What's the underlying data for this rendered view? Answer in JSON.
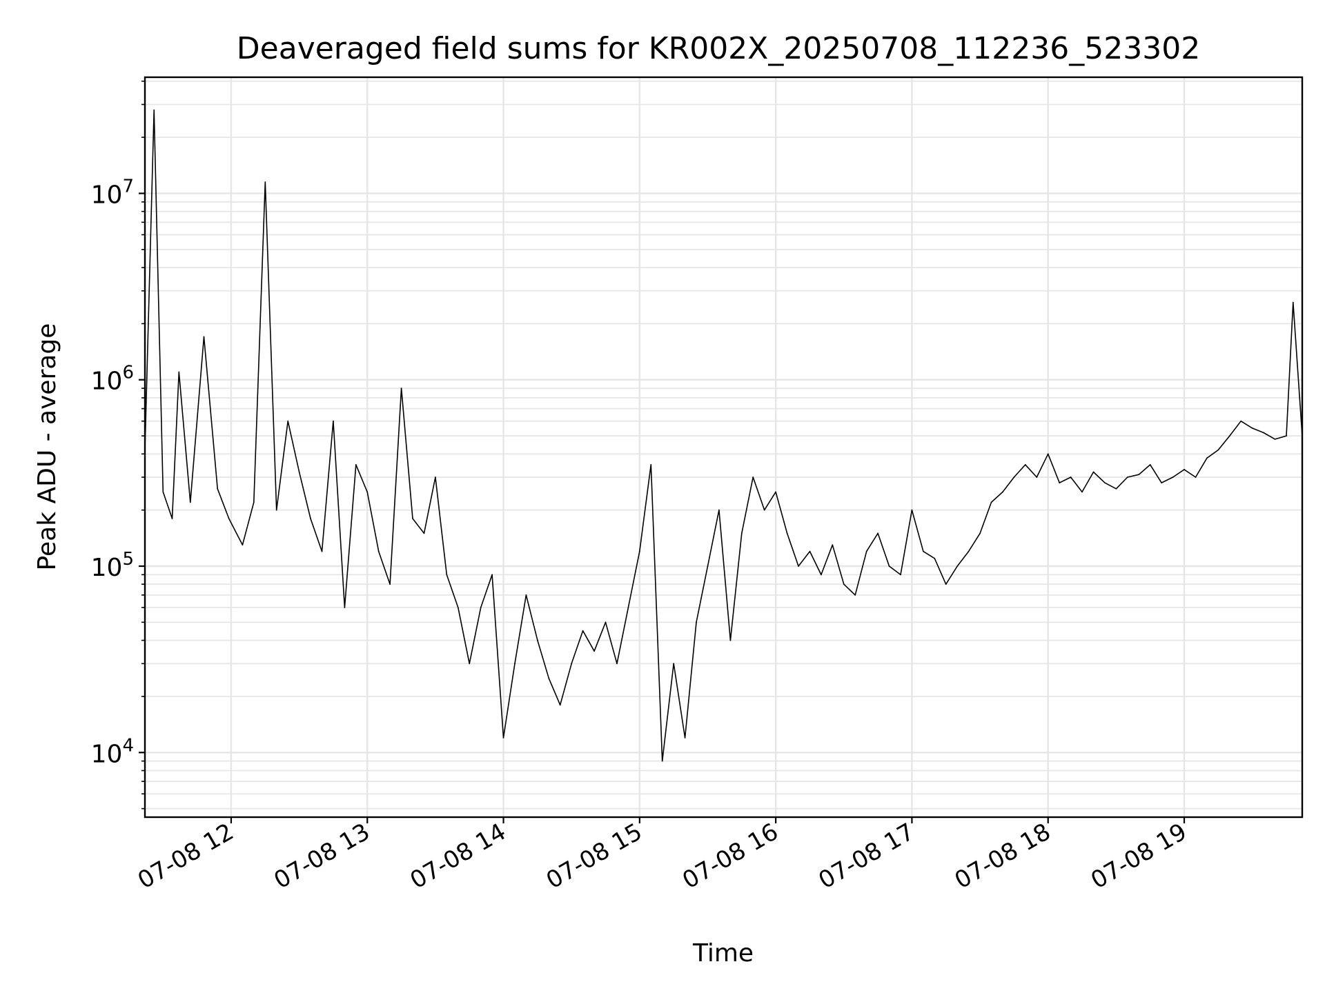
{
  "chart_data": {
    "type": "line",
    "title": "Deaveraged field sums for KR002X_20250708_112236_523302",
    "xlabel": "Time",
    "ylabel": "Peak ADU - average",
    "yscale": "log",
    "ylim": [
      4500,
      42000000
    ],
    "xlim": [
      "2025-07-08 11:22",
      "2025-07-08 19:52"
    ],
    "grid": true,
    "legend": "none",
    "line_color": "#000000",
    "x_ticks": [
      {
        "label": "07-08 12",
        "t": "2025-07-08 12:00"
      },
      {
        "label": "07-08 13",
        "t": "2025-07-08 13:00"
      },
      {
        "label": "07-08 14",
        "t": "2025-07-08 14:00"
      },
      {
        "label": "07-08 15",
        "t": "2025-07-08 15:00"
      },
      {
        "label": "07-08 16",
        "t": "2025-07-08 16:00"
      },
      {
        "label": "07-08 17",
        "t": "2025-07-08 17:00"
      },
      {
        "label": "07-08 18",
        "t": "2025-07-08 18:00"
      },
      {
        "label": "07-08 19",
        "t": "2025-07-08 19:00"
      }
    ],
    "y_ticks": [
      {
        "base": "10",
        "exp": "4",
        "value": 10000
      },
      {
        "base": "10",
        "exp": "5",
        "value": 100000
      },
      {
        "base": "10",
        "exp": "6",
        "value": 1000000
      },
      {
        "base": "10",
        "exp": "7",
        "value": 10000000
      }
    ],
    "series": [
      {
        "x": [
          "2025-07-08 11:22",
          "2025-07-08 11:26",
          "2025-07-08 11:30",
          "2025-07-08 11:34",
          "2025-07-08 11:37",
          "2025-07-08 11:42",
          "2025-07-08 11:48",
          "2025-07-08 11:54",
          "2025-07-08 11:59",
          "2025-07-08 12:05",
          "2025-07-08 12:10",
          "2025-07-08 12:15",
          "2025-07-08 12:20",
          "2025-07-08 12:25",
          "2025-07-08 12:30",
          "2025-07-08 12:35",
          "2025-07-08 12:40",
          "2025-07-08 12:45",
          "2025-07-08 12:50",
          "2025-07-08 12:55",
          "2025-07-08 13:00",
          "2025-07-08 13:05",
          "2025-07-08 13:10",
          "2025-07-08 13:15",
          "2025-07-08 13:20",
          "2025-07-08 13:25",
          "2025-07-08 13:30",
          "2025-07-08 13:35",
          "2025-07-08 13:40",
          "2025-07-08 13:45",
          "2025-07-08 13:50",
          "2025-07-08 13:55",
          "2025-07-08 14:00",
          "2025-07-08 14:05",
          "2025-07-08 14:10",
          "2025-07-08 14:15",
          "2025-07-08 14:20",
          "2025-07-08 14:25",
          "2025-07-08 14:30",
          "2025-07-08 14:35",
          "2025-07-08 14:40",
          "2025-07-08 14:45",
          "2025-07-08 14:50",
          "2025-07-08 14:55",
          "2025-07-08 15:00",
          "2025-07-08 15:05",
          "2025-07-08 15:10",
          "2025-07-08 15:15",
          "2025-07-08 15:20",
          "2025-07-08 15:25",
          "2025-07-08 15:30",
          "2025-07-08 15:35",
          "2025-07-08 15:40",
          "2025-07-08 15:45",
          "2025-07-08 15:50",
          "2025-07-08 15:55",
          "2025-07-08 16:00",
          "2025-07-08 16:05",
          "2025-07-08 16:10",
          "2025-07-08 16:15",
          "2025-07-08 16:20",
          "2025-07-08 16:25",
          "2025-07-08 16:30",
          "2025-07-08 16:35",
          "2025-07-08 16:40",
          "2025-07-08 16:45",
          "2025-07-08 16:50",
          "2025-07-08 16:55",
          "2025-07-08 17:00",
          "2025-07-08 17:05",
          "2025-07-08 17:10",
          "2025-07-08 17:15",
          "2025-07-08 17:20",
          "2025-07-08 17:25",
          "2025-07-08 17:30",
          "2025-07-08 17:35",
          "2025-07-08 17:40",
          "2025-07-08 17:45",
          "2025-07-08 17:50",
          "2025-07-08 17:55",
          "2025-07-08 18:00",
          "2025-07-08 18:05",
          "2025-07-08 18:10",
          "2025-07-08 18:15",
          "2025-07-08 18:20",
          "2025-07-08 18:25",
          "2025-07-08 18:30",
          "2025-07-08 18:35",
          "2025-07-08 18:40",
          "2025-07-08 18:45",
          "2025-07-08 18:50",
          "2025-07-08 18:55",
          "2025-07-08 19:00",
          "2025-07-08 19:05",
          "2025-07-08 19:10",
          "2025-07-08 19:15",
          "2025-07-08 19:20",
          "2025-07-08 19:25",
          "2025-07-08 19:30",
          "2025-07-08 19:35",
          "2025-07-08 19:40",
          "2025-07-08 19:45",
          "2025-07-08 19:48",
          "2025-07-08 19:52"
        ],
        "values": [
          420000,
          28000000,
          250000,
          180000,
          1100000,
          220000,
          1700000,
          260000,
          180000,
          130000,
          220000,
          11500000,
          200000,
          600000,
          320000,
          180000,
          120000,
          600000,
          60000,
          350000,
          250000,
          120000,
          80000,
          900000,
          180000,
          150000,
          300000,
          90000,
          60000,
          30000,
          60000,
          90000,
          12000,
          30000,
          70000,
          40000,
          25000,
          18000,
          30000,
          45000,
          35000,
          50000,
          30000,
          60000,
          120000,
          350000,
          9000,
          30000,
          12000,
          50000,
          100000,
          200000,
          40000,
          150000,
          300000,
          200000,
          250000,
          150000,
          100000,
          120000,
          90000,
          130000,
          80000,
          70000,
          120000,
          150000,
          100000,
          90000,
          200000,
          120000,
          110000,
          80000,
          100000,
          120000,
          150000,
          220000,
          250000,
          300000,
          350000,
          300000,
          400000,
          280000,
          300000,
          250000,
          320000,
          280000,
          260000,
          300000,
          310000,
          350000,
          280000,
          300000,
          330000,
          300000,
          380000,
          420000,
          500000,
          600000,
          550000,
          520000,
          480000,
          500000,
          2600000,
          500000
        ]
      }
    ]
  }
}
